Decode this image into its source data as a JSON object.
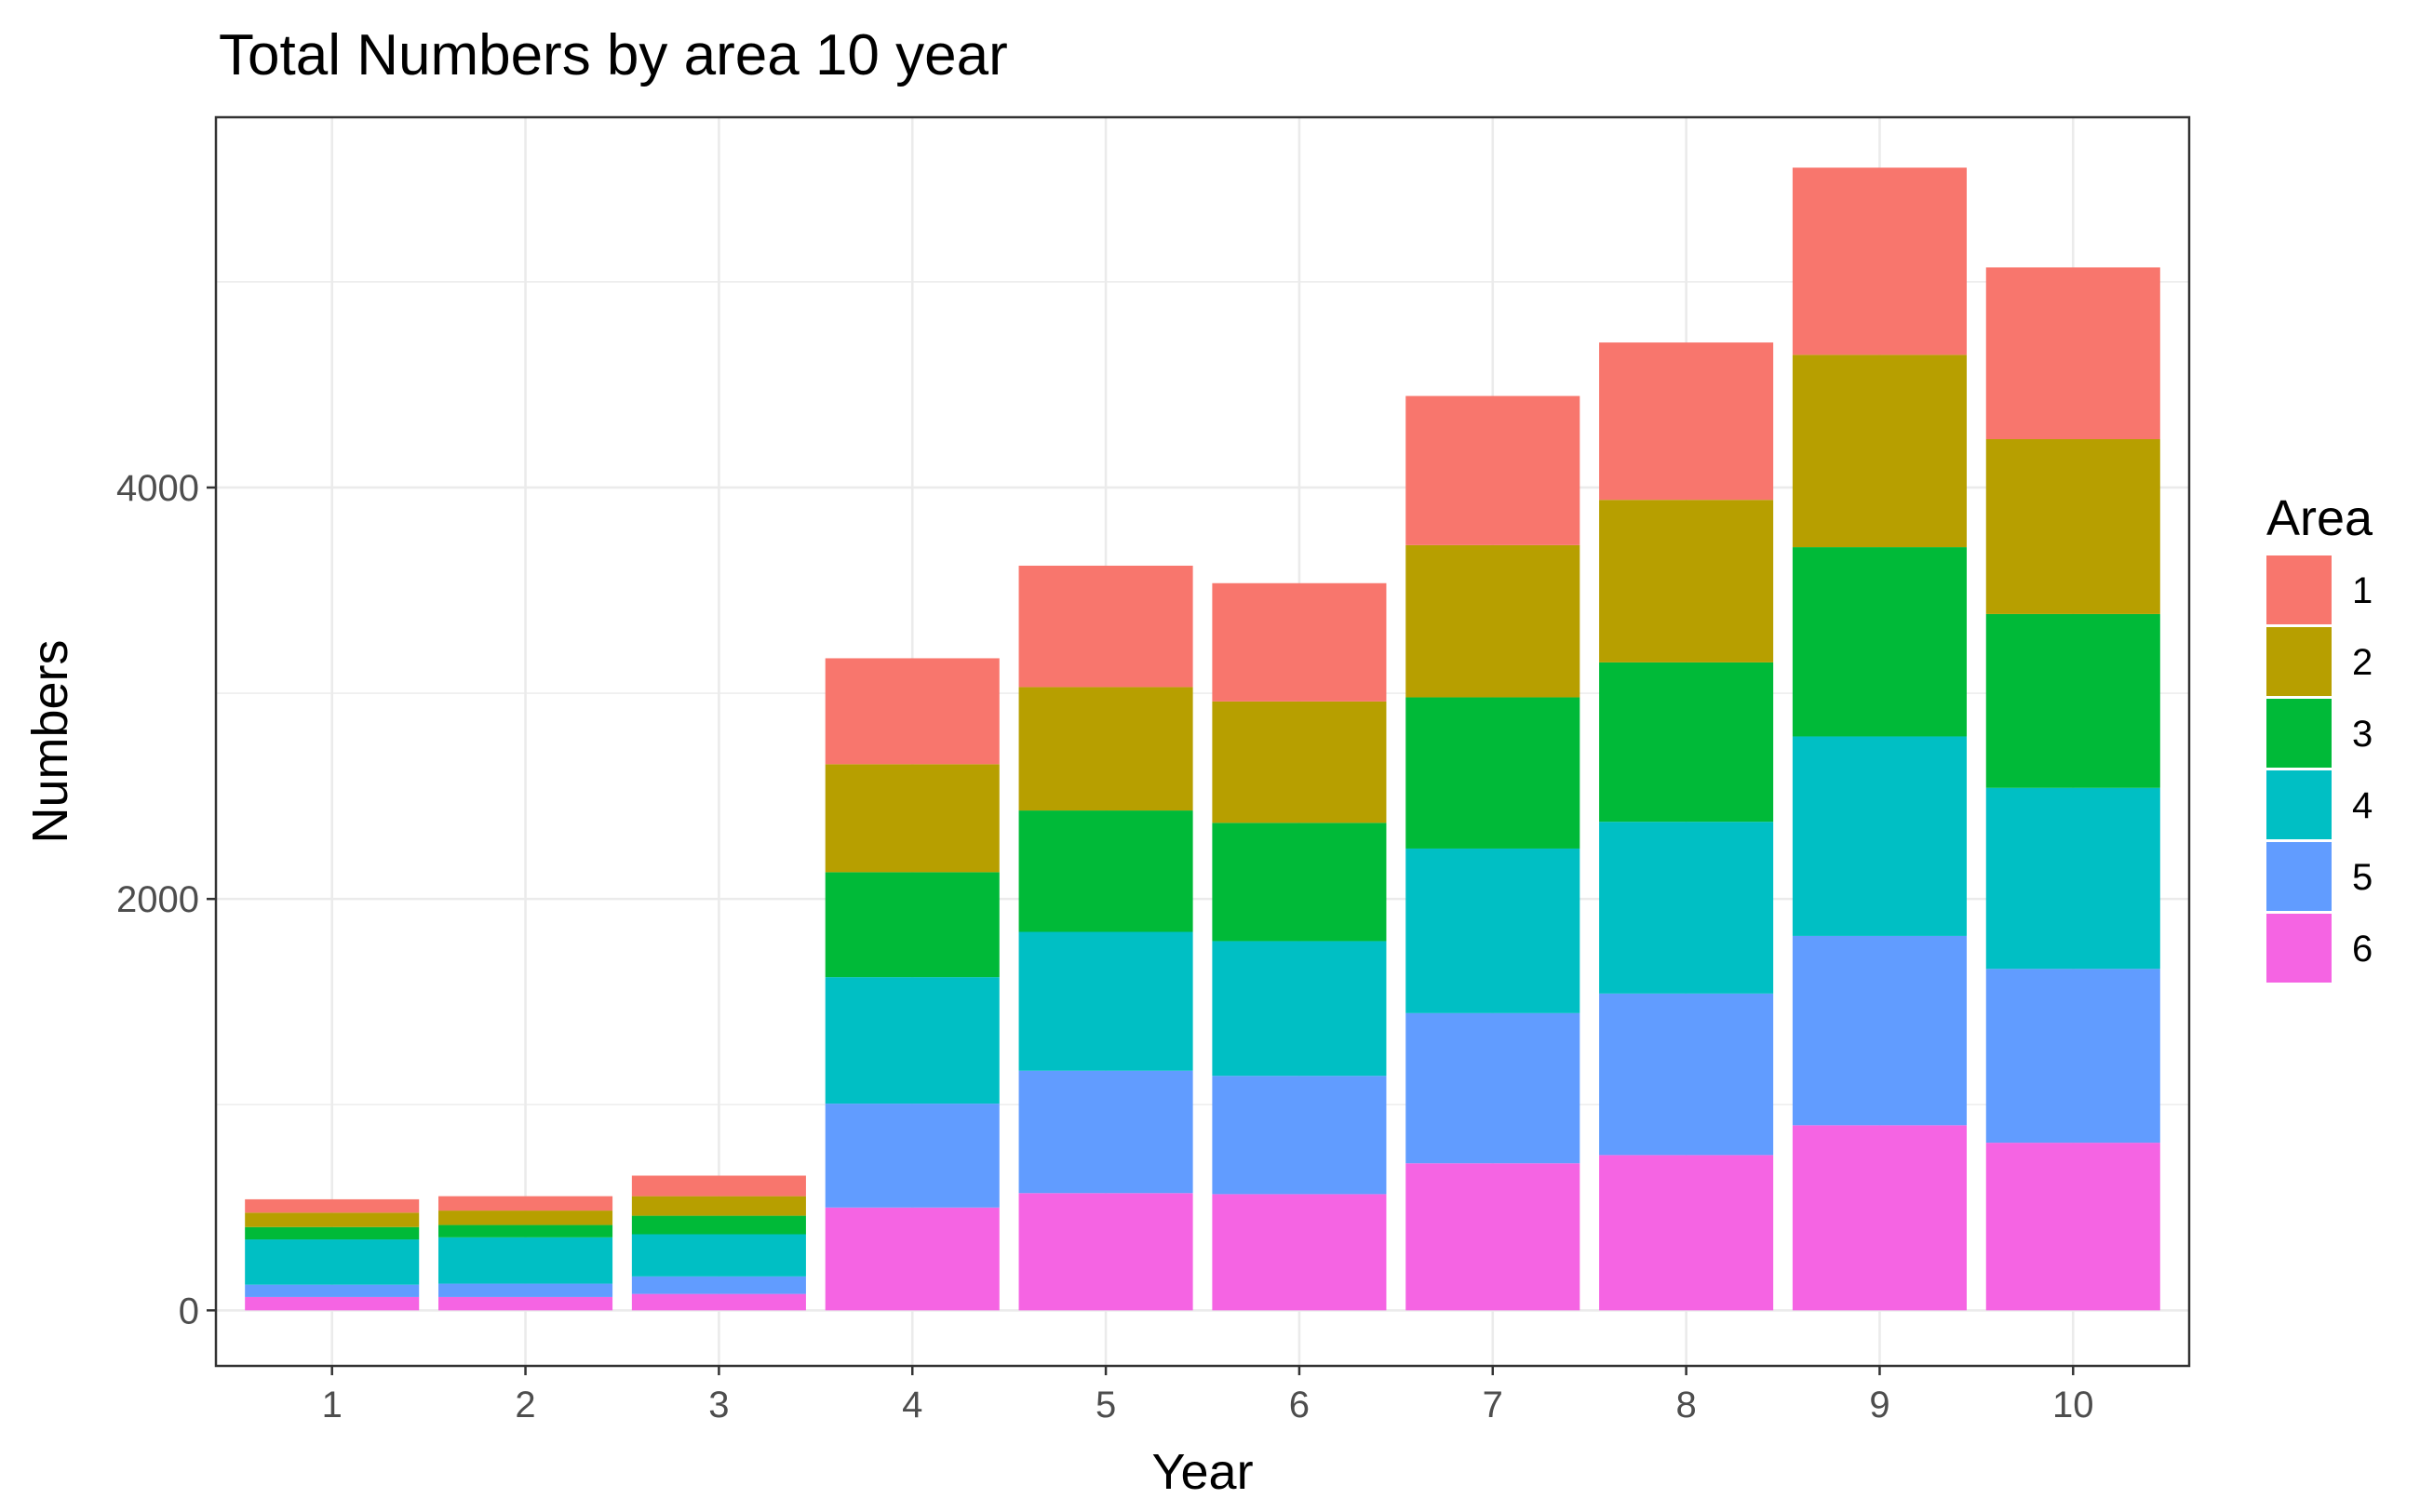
{
  "chart_data": {
    "type": "bar",
    "stacked": true,
    "title": "Total Numbers by area 10 year",
    "xlabel": "Year",
    "ylabel": "Numbers",
    "categories": [
      "1",
      "2",
      "3",
      "4",
      "5",
      "6",
      "7",
      "8",
      "9",
      "10"
    ],
    "ylim": [
      -270,
      5800
    ],
    "yticks": [
      0,
      2000,
      4000
    ],
    "ytick_labels": [
      "0",
      "2000",
      "4000"
    ],
    "grid": true,
    "legend": {
      "title": "Area",
      "position": "right"
    },
    "series": [
      {
        "name": "6",
        "color": "#F564E3",
        "values": [
          65,
          65,
          80,
          500,
          570,
          565,
          715,
          755,
          900,
          815
        ]
      },
      {
        "name": "5",
        "color": "#619CFF",
        "values": [
          60,
          65,
          85,
          505,
          595,
          575,
          730,
          785,
          920,
          845
        ]
      },
      {
        "name": "4",
        "color": "#00BFC4",
        "values": [
          220,
          225,
          205,
          615,
          675,
          655,
          800,
          835,
          970,
          880
        ]
      },
      {
        "name": "3",
        "color": "#00BA38",
        "values": [
          60,
          60,
          90,
          510,
          590,
          575,
          735,
          775,
          920,
          845
        ]
      },
      {
        "name": "2",
        "color": "#B79F00",
        "values": [
          70,
          70,
          95,
          525,
          600,
          590,
          740,
          790,
          935,
          850
        ]
      },
      {
        "name": "1",
        "color": "#F8766D",
        "values": [
          65,
          70,
          100,
          515,
          590,
          575,
          725,
          765,
          910,
          835
        ]
      }
    ]
  }
}
